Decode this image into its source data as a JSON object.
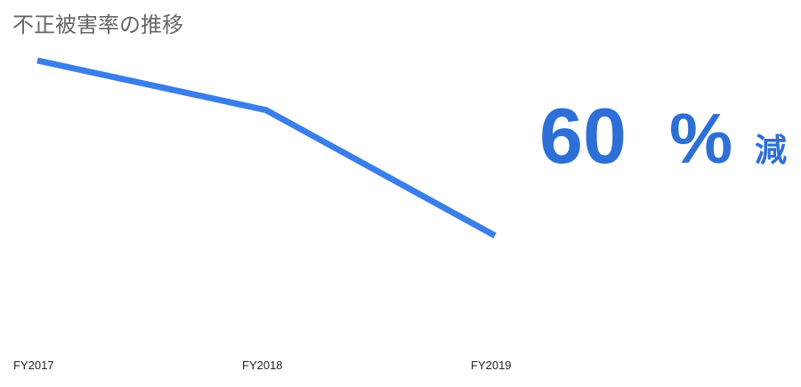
{
  "chart_data": {
    "type": "line",
    "title": "不正被害率の推移",
    "categories": [
      "FY2017",
      "FY2018",
      "FY2019"
    ],
    "series": [
      {
        "name": null,
        "color": "#3a7ee9",
        "values": [
          100,
          83,
          40
        ]
      }
    ],
    "ylim": [
      0,
      100
    ],
    "annotation_number": "60",
    "annotation_unit": "%",
    "annotation_suffix": "減",
    "annotation_color": "#2d6fd6"
  }
}
